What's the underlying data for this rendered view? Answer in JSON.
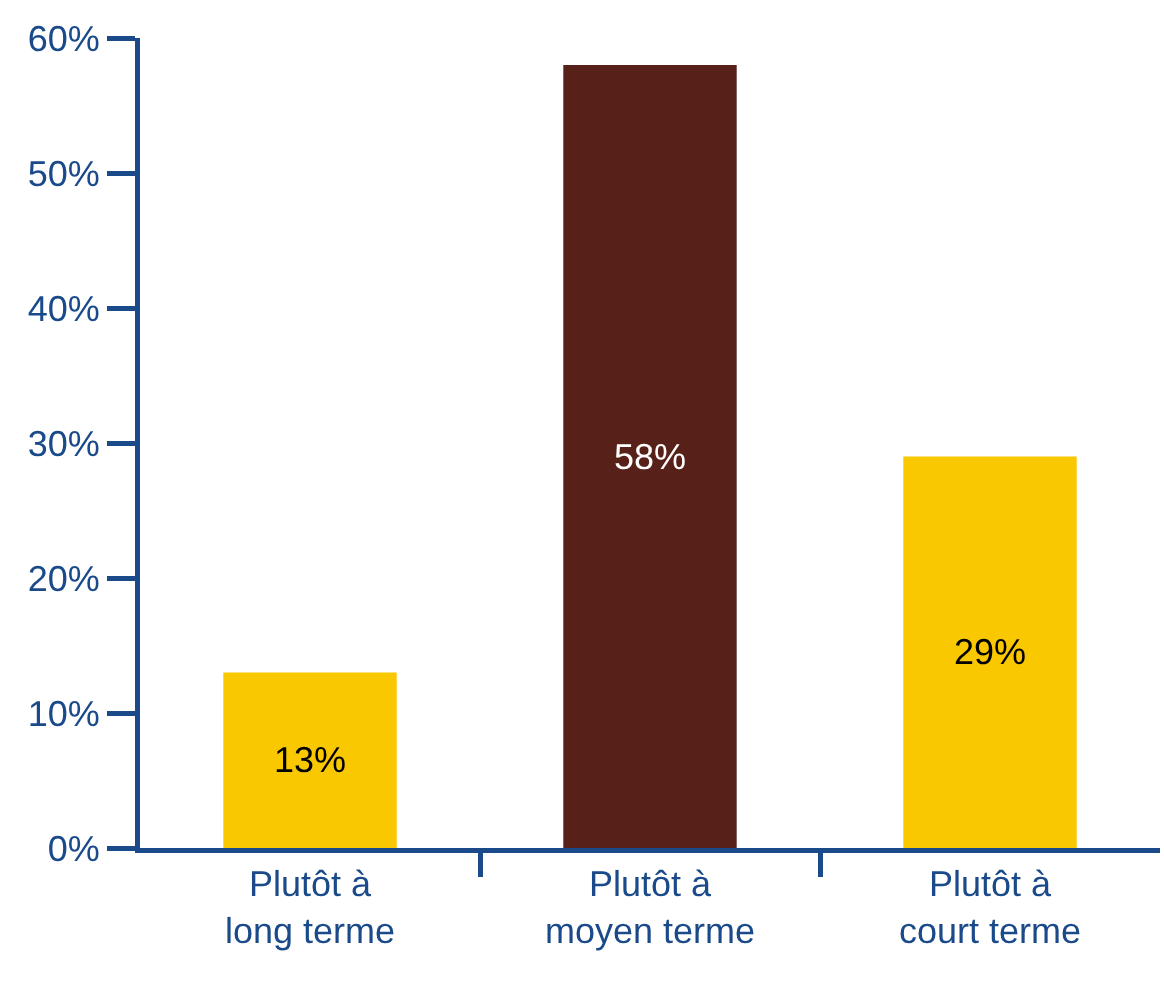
{
  "chart_data": {
    "type": "bar",
    "categories": [
      "Plutôt à\nlong terme",
      "Plutôt à\nmoyen terme",
      "Plutôt à\ncourt terme"
    ],
    "values": [
      13,
      58,
      29
    ],
    "colors": [
      "#f9c800",
      "#57211a",
      "#f9c800"
    ],
    "value_labels": [
      "13%",
      "58%",
      "29%"
    ],
    "ylim": [
      0,
      60
    ],
    "yticks": [
      {
        "value": 0,
        "label": "0%"
      },
      {
        "value": 10,
        "label": "10%"
      },
      {
        "value": 20,
        "label": "20%"
      },
      {
        "value": 30,
        "label": "30%"
      },
      {
        "value": 40,
        "label": "40%"
      },
      {
        "value": 50,
        "label": "50%"
      },
      {
        "value": 60,
        "label": "60%"
      }
    ]
  }
}
